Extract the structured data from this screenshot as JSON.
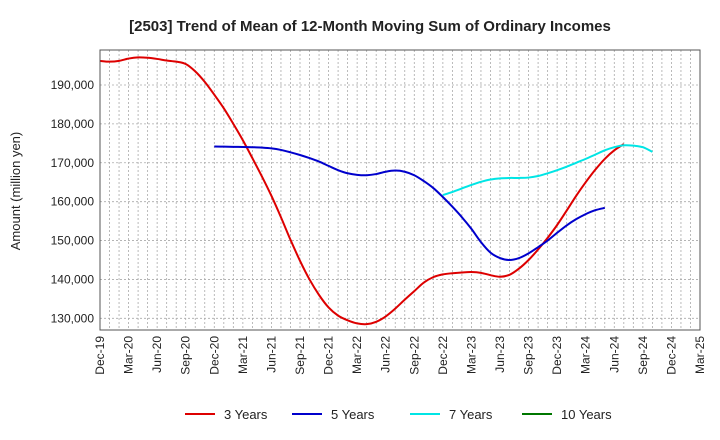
{
  "chart_data": {
    "type": "line",
    "title": "[2503]  Trend of Mean of 12-Month Moving Sum of Ordinary Incomes",
    "xlabel": "",
    "ylabel": "Amount (million yen)",
    "ylim": [
      127000,
      199000
    ],
    "yticks": [
      130000,
      140000,
      150000,
      160000,
      170000,
      180000,
      190000
    ],
    "ytick_labels": [
      "130,000",
      "140,000",
      "150,000",
      "160,000",
      "170,000",
      "180,000",
      "190,000"
    ],
    "x_tick_labels": [
      "Dec-19",
      "Mar-20",
      "Jun-20",
      "Sep-20",
      "Dec-20",
      "Mar-21",
      "Jun-21",
      "Sep-21",
      "Dec-21",
      "Mar-22",
      "Jun-22",
      "Sep-22",
      "Dec-22",
      "Mar-23",
      "Jun-23",
      "Sep-23",
      "Dec-23",
      "Mar-24",
      "Jun-24",
      "Sep-24",
      "Dec-24",
      "Mar-25"
    ],
    "x_domain": [
      0,
      63
    ],
    "grid": true,
    "legend_position": "bottom",
    "series": [
      {
        "name": "3 Years",
        "color": "#dd0000",
        "points": [
          [
            0,
            196200
          ],
          [
            1,
            196000
          ],
          [
            2,
            196200
          ],
          [
            3,
            196800
          ],
          [
            4,
            197100
          ],
          [
            5,
            197000
          ],
          [
            6,
            196700
          ],
          [
            7,
            196300
          ],
          [
            8,
            196000
          ],
          [
            9,
            195400
          ],
          [
            10,
            193500
          ],
          [
            11,
            190800
          ],
          [
            12,
            187500
          ],
          [
            13,
            184000
          ],
          [
            14,
            180000
          ],
          [
            15,
            175800
          ],
          [
            16,
            171200
          ],
          [
            17,
            166500
          ],
          [
            18,
            161500
          ],
          [
            19,
            156000
          ],
          [
            20,
            150200
          ],
          [
            21,
            144800
          ],
          [
            22,
            140000
          ],
          [
            23,
            136000
          ],
          [
            24,
            132800
          ],
          [
            25,
            130700
          ],
          [
            26,
            129500
          ],
          [
            27,
            128700
          ],
          [
            28,
            128500
          ],
          [
            29,
            129100
          ],
          [
            30,
            130500
          ],
          [
            31,
            132500
          ],
          [
            32,
            134800
          ],
          [
            33,
            137000
          ],
          [
            34,
            139200
          ],
          [
            35,
            140600
          ],
          [
            36,
            141300
          ],
          [
            37,
            141600
          ],
          [
            38,
            141800
          ],
          [
            39,
            141900
          ],
          [
            40,
            141700
          ],
          [
            41,
            141100
          ],
          [
            42,
            140700
          ],
          [
            43,
            141200
          ],
          [
            44,
            142800
          ],
          [
            45,
            145000
          ],
          [
            46,
            147700
          ],
          [
            47,
            150700
          ],
          [
            48,
            154000
          ],
          [
            49,
            157700
          ],
          [
            50,
            161500
          ],
          [
            51,
            165000
          ],
          [
            52,
            168200
          ],
          [
            53,
            171000
          ],
          [
            54,
            173200
          ],
          [
            55,
            174800
          ]
        ]
      },
      {
        "name": "5 Years",
        "color": "#0000cc",
        "points": [
          [
            12,
            174200
          ],
          [
            13,
            174150
          ],
          [
            14,
            174100
          ],
          [
            15,
            174050
          ],
          [
            16,
            174000
          ],
          [
            17,
            173900
          ],
          [
            18,
            173700
          ],
          [
            19,
            173300
          ],
          [
            20,
            172700
          ],
          [
            21,
            172000
          ],
          [
            22,
            171200
          ],
          [
            23,
            170300
          ],
          [
            24,
            169200
          ],
          [
            25,
            168100
          ],
          [
            26,
            167300
          ],
          [
            27,
            166900
          ],
          [
            28,
            166800
          ],
          [
            29,
            167100
          ],
          [
            30,
            167700
          ],
          [
            31,
            168000
          ],
          [
            32,
            167700
          ],
          [
            33,
            166800
          ],
          [
            34,
            165300
          ],
          [
            35,
            163500
          ],
          [
            36,
            161200
          ],
          [
            37,
            158700
          ],
          [
            38,
            156000
          ],
          [
            39,
            153000
          ],
          [
            40,
            149600
          ],
          [
            41,
            146900
          ],
          [
            42,
            145500
          ],
          [
            43,
            145000
          ],
          [
            44,
            145500
          ],
          [
            45,
            146700
          ],
          [
            46,
            148300
          ],
          [
            47,
            150000
          ],
          [
            48,
            152000
          ],
          [
            49,
            153900
          ],
          [
            50,
            155500
          ],
          [
            51,
            156800
          ],
          [
            52,
            157800
          ],
          [
            53,
            158400
          ]
        ]
      },
      {
        "name": "7 Years",
        "color": "#00e5e5",
        "points": [
          [
            36,
            161700
          ],
          [
            37,
            162500
          ],
          [
            38,
            163400
          ],
          [
            39,
            164300
          ],
          [
            40,
            165100
          ],
          [
            41,
            165700
          ],
          [
            42,
            166000
          ],
          [
            43,
            166100
          ],
          [
            44,
            166100
          ],
          [
            45,
            166200
          ],
          [
            46,
            166600
          ],
          [
            47,
            167300
          ],
          [
            48,
            168100
          ],
          [
            49,
            169000
          ],
          [
            50,
            170000
          ],
          [
            51,
            171000
          ],
          [
            52,
            172100
          ],
          [
            53,
            173200
          ],
          [
            54,
            174000
          ],
          [
            55,
            174500
          ],
          [
            56,
            174400
          ],
          [
            57,
            174000
          ],
          [
            58,
            172800
          ]
        ]
      },
      {
        "name": "10 Years",
        "color": "#007700",
        "points": []
      }
    ]
  }
}
